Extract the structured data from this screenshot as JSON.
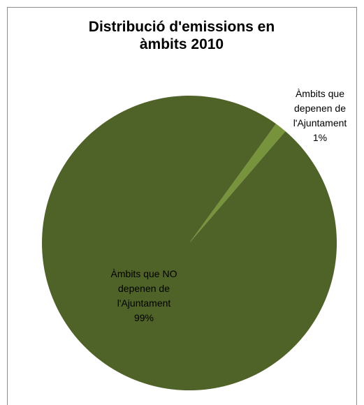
{
  "chart_data": {
    "type": "pie",
    "title_lines": [
      "Distribució d'emissions  en",
      "àmbits 2010"
    ],
    "slices": [
      {
        "label_lines": [
          "Àmbits que",
          "depenen de",
          "l'Ajuntament",
          "1%"
        ],
        "value": 1.3,
        "color": "#77933c"
      },
      {
        "label_lines": [
          "Àmbits que NO",
          "depenen de",
          "l'Ajuntament",
          "99%"
        ],
        "value": 98.7,
        "color": "#4f6228"
      }
    ],
    "legend": "none"
  }
}
